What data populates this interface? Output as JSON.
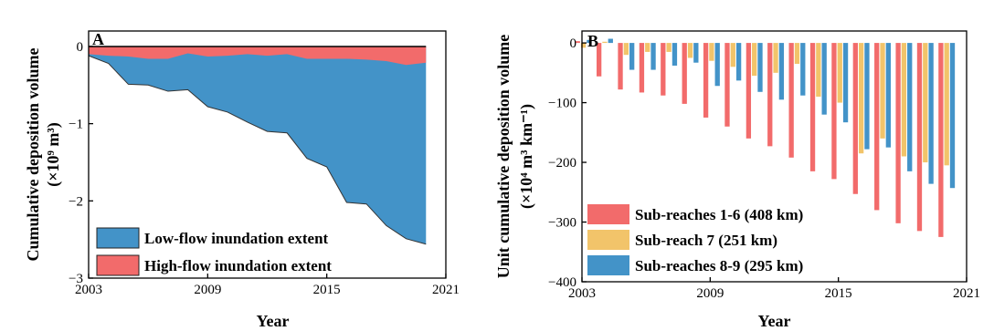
{
  "chart_data": [
    {
      "type": "area",
      "panel_label": "A",
      "xlabel": "Year",
      "ylabel_line1": "Cumulative deposition volume",
      "ylabel_line2": "(×10⁹ m³)",
      "xlim": [
        2003,
        2021
      ],
      "ylim": [
        -3,
        0.2
      ],
      "xticks": [
        2003,
        2009,
        2015,
        2021
      ],
      "yticks": [
        0,
        -1,
        -2,
        -3
      ],
      "x": [
        2003,
        2004,
        2005,
        2006,
        2007,
        2008,
        2009,
        2010,
        2011,
        2012,
        2013,
        2014,
        2015,
        2016,
        2017,
        2018,
        2019,
        2020
      ],
      "series": [
        {
          "name": "Low-flow inundation extent",
          "color": "#4393c8",
          "values": [
            -0.12,
            -0.22,
            -0.49,
            -0.5,
            -0.58,
            -0.56,
            -0.78,
            -0.85,
            -0.98,
            -1.1,
            -1.12,
            -1.45,
            -1.56,
            -2.02,
            -2.04,
            -2.32,
            -2.49,
            -2.56
          ]
        },
        {
          "name": "High-flow inundation extent",
          "color": "#f26b6b",
          "values": [
            -0.1,
            -0.12,
            -0.13,
            -0.16,
            -0.16,
            -0.09,
            -0.13,
            -0.12,
            -0.1,
            -0.12,
            -0.1,
            -0.16,
            -0.16,
            -0.16,
            -0.17,
            -0.19,
            -0.24,
            -0.21
          ]
        }
      ],
      "legend_position": "bottom-left",
      "grid": false
    },
    {
      "type": "bar",
      "panel_label": "B",
      "xlabel": "Year",
      "ylabel": "Unit cumulative deposition volume",
      "ylabel_unit": "(×10⁴ m³ km⁻¹)",
      "xlim": [
        2003,
        2021
      ],
      "ylim": [
        -400,
        20
      ],
      "xticks": [
        2003,
        2009,
        2015,
        2021
      ],
      "yticks": [
        0,
        -100,
        -200,
        -300,
        -400
      ],
      "x": [
        2003,
        2004,
        2005,
        2006,
        2007,
        2008,
        2009,
        2010,
        2011,
        2012,
        2013,
        2014,
        2015,
        2016,
        2017,
        2018,
        2019,
        2020
      ],
      "series": [
        {
          "name": "Sub-reaches 1-6 (408 km)",
          "color": "#f26b6b",
          "values": [
            3,
            -56,
            -78,
            -83,
            -88,
            -102,
            -125,
            -140,
            -160,
            -173,
            -192,
            -215,
            -228,
            -253,
            -280,
            -302,
            -315,
            -325
          ]
        },
        {
          "name": "Sub-reach      7   (251 km)",
          "color": "#f2c46a",
          "values": [
            -8,
            2,
            -20,
            -15,
            -15,
            -25,
            -30,
            -40,
            -55,
            -50,
            -35,
            -90,
            -100,
            -185,
            -160,
            -190,
            -200,
            -205
          ]
        },
        {
          "name": "Sub-reaches 8-9 (295 km)",
          "color": "#4393c8",
          "values": [
            5,
            7,
            -45,
            -45,
            -38,
            -33,
            -72,
            -63,
            -82,
            -95,
            -88,
            -120,
            -133,
            -178,
            -175,
            -215,
            -236,
            -243
          ]
        }
      ],
      "legend_position": "bottom-left",
      "grid": false
    }
  ]
}
